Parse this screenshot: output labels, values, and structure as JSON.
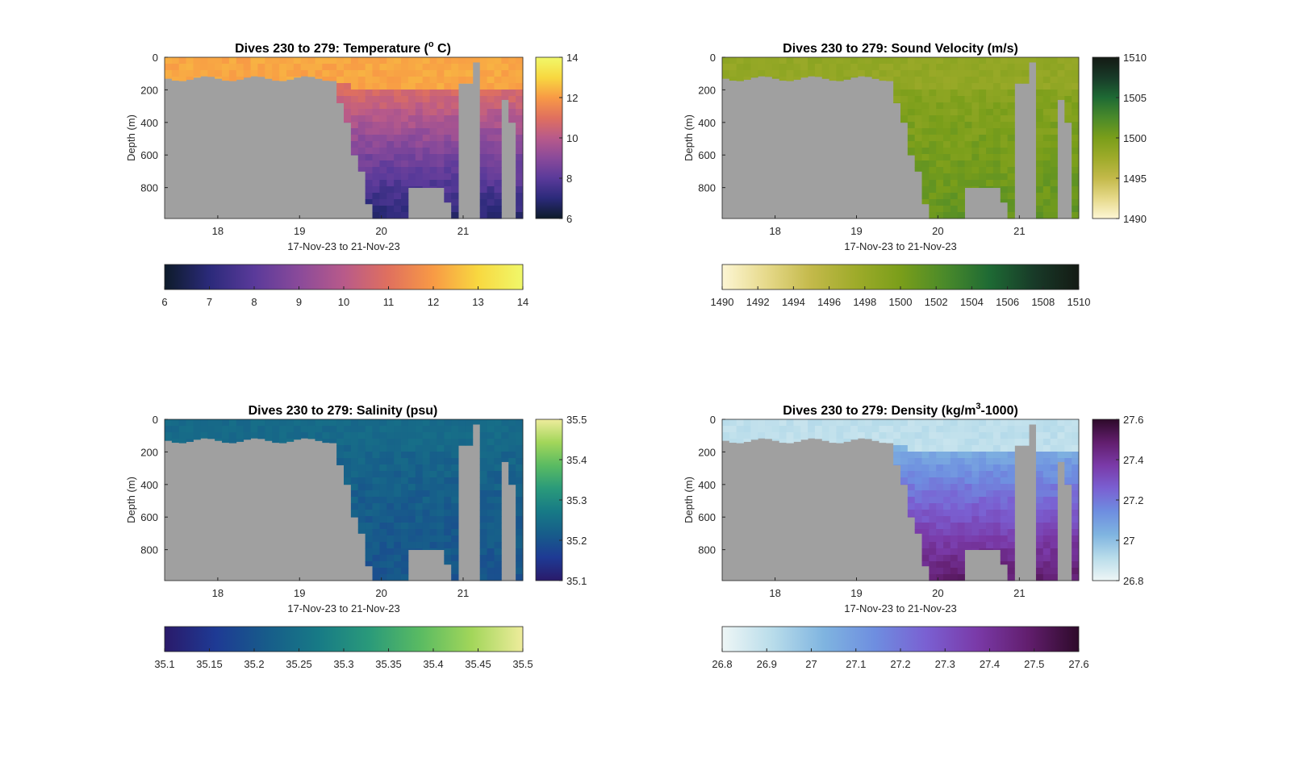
{
  "figure": {
    "background": "#ffffff",
    "fill_color": "#a0a0a0",
    "x_tick_labels": [
      "18",
      "19",
      "20",
      "21"
    ],
    "y_tick_labels": [
      "0",
      "200",
      "400",
      "600",
      "800"
    ],
    "xlabel": "17-Nov-23 to 21-Nov-23",
    "ylabel": "Depth (m)"
  },
  "chart_data": [
    {
      "type": "heatmap",
      "title": "Dives 230 to 279: Temperature (",
      "title_sup": "o",
      "title_suffix": " C)",
      "xlabel": "17-Nov-23 to 21-Nov-23",
      "ylabel": "Depth (m)",
      "xlim": [
        17.35,
        21.73
      ],
      "ylim": [
        0,
        990
      ],
      "y_reversed": true,
      "clim": [
        6,
        14
      ],
      "colormap": [
        "#0d1b2a",
        "#2b2a7a",
        "#5a3a9a",
        "#8a4a9a",
        "#b85a8a",
        "#e0705e",
        "#f89a45",
        "#f8d840",
        "#f0f86a"
      ],
      "colorbar_right_ticks": [
        "6",
        "8",
        "10",
        "12",
        "14"
      ],
      "colorbar_bottom_ticks": [
        "6",
        "7",
        "8",
        "9",
        "10",
        "11",
        "12",
        "13",
        "14"
      ],
      "surface_value": 12.2,
      "deep_value": 6.8,
      "shelf_depth_m": 130,
      "shelf_deepen_m": 40
    },
    {
      "type": "heatmap",
      "title": "Dives 230 to 279: Sound Velocity (m/s)",
      "xlabel": "17-Nov-23 to 21-Nov-23",
      "ylabel": "Depth (m)",
      "xlim": [
        17.35,
        21.73
      ],
      "ylim": [
        0,
        990
      ],
      "y_reversed": true,
      "clim": [
        1490,
        1510
      ],
      "colormap": [
        "#fdf6d4",
        "#e6d98a",
        "#c3b94a",
        "#9eab2a",
        "#7a9e1a",
        "#4a8a2a",
        "#1e6a34",
        "#183a28",
        "#141a14"
      ],
      "colorbar_right_ticks": [
        "1490",
        "1495",
        "1500",
        "1505",
        "1510"
      ],
      "colorbar_bottom_ticks": [
        "1490",
        "1492",
        "1494",
        "1496",
        "1498",
        "1500",
        "1502",
        "1504",
        "1506",
        "1508",
        "1510"
      ],
      "surface_value": 1498.3,
      "deep_value": 1501.2,
      "shelf_depth_m": 130,
      "shelf_deepen_m": 40
    },
    {
      "type": "heatmap",
      "title": "Dives 230 to 279: Salinity (psu)",
      "xlabel": "17-Nov-23 to 21-Nov-23",
      "ylabel": "Depth (m)",
      "xlim": [
        17.35,
        21.73
      ],
      "ylim": [
        0,
        990
      ],
      "y_reversed": true,
      "clim": [
        35.1,
        35.5
      ],
      "colormap": [
        "#2a1a6a",
        "#1e3a94",
        "#175c8a",
        "#177a86",
        "#2a9a7a",
        "#5abb62",
        "#a2d65a",
        "#eeec9c"
      ],
      "colorbar_right_ticks": [
        "35.1",
        "35.2",
        "35.3",
        "35.4",
        "35.5"
      ],
      "colorbar_bottom_ticks": [
        "35.1",
        "35.15",
        "35.2",
        "35.25",
        "35.3",
        "35.35",
        "35.4",
        "35.45",
        "35.5"
      ],
      "surface_value": 35.24,
      "deep_value": 35.2,
      "shelf_depth_m": 130,
      "shelf_deepen_m": 40
    },
    {
      "type": "heatmap",
      "title": "Dives 230 to 279: Density (kg/m",
      "title_sup": "3",
      "title_suffix": "-1000)",
      "xlabel": "17-Nov-23 to 21-Nov-23",
      "ylabel": "Depth (m)",
      "xlim": [
        17.35,
        21.73
      ],
      "ylim": [
        0,
        990
      ],
      "y_reversed": true,
      "clim": [
        26.8,
        27.6
      ],
      "colormap": [
        "#eef6f6",
        "#b8dcea",
        "#7fb4e0",
        "#6e8ee0",
        "#7a60d2",
        "#7a3aa8",
        "#621e6e",
        "#2e0a2a"
      ],
      "colorbar_right_ticks": [
        "26.8",
        "27",
        "27.2",
        "27.4",
        "27.6"
      ],
      "colorbar_bottom_ticks": [
        "26.8",
        "26.9",
        "27",
        "27.1",
        "27.2",
        "27.3",
        "27.4",
        "27.5",
        "27.6"
      ],
      "surface_value": 26.9,
      "deep_value": 27.5,
      "shelf_depth_m": 130,
      "shelf_deepen_m": 40
    }
  ]
}
